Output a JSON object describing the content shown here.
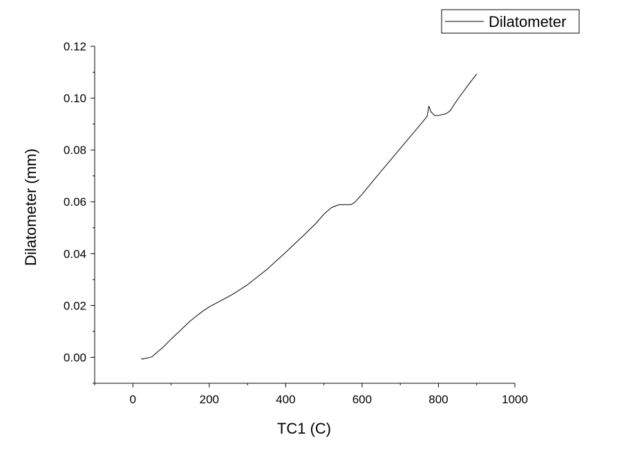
{
  "chart_data": {
    "type": "line",
    "title": "",
    "xlabel": "TC1 (C)",
    "ylabel": "Dilatometer (mm)",
    "xlim": [
      -100,
      1000
    ],
    "ylim": [
      -0.01,
      0.12
    ],
    "xticks": [
      0,
      200,
      400,
      600,
      800,
      1000
    ],
    "xtick_labels": [
      "0",
      "200",
      "400",
      "600",
      "800",
      "1000"
    ],
    "yticks": [
      0.0,
      0.02,
      0.04,
      0.06,
      0.08,
      0.1,
      0.12
    ],
    "ytick_labels": [
      "0.00",
      "0.02",
      "0.04",
      "0.06",
      "0.08",
      "0.10",
      "0.12"
    ],
    "grid": false,
    "legend_position": "top-right",
    "series": [
      {
        "name": "Dilatometer",
        "color": "#000000",
        "x": [
          22,
          25,
          30,
          40,
          50,
          60,
          80,
          100,
          120,
          150,
          180,
          200,
          230,
          260,
          300,
          350,
          400,
          450,
          480,
          500,
          520,
          540,
          560,
          570,
          580,
          600,
          650,
          700,
          750,
          770,
          775,
          780,
          790,
          800,
          820,
          830,
          850,
          880,
          900
        ],
        "y": [
          -0.0003,
          -0.0007,
          -0.0005,
          -0.0002,
          0.0002,
          0.0015,
          0.004,
          0.007,
          0.0098,
          0.014,
          0.0175,
          0.0195,
          0.0218,
          0.0242,
          0.028,
          0.0338,
          0.0405,
          0.0475,
          0.0518,
          0.0552,
          0.0578,
          0.0589,
          0.0589,
          0.0589,
          0.0597,
          0.0629,
          0.0718,
          0.0806,
          0.0893,
          0.0929,
          0.0969,
          0.0948,
          0.0933,
          0.0933,
          0.094,
          0.095,
          0.0995,
          0.1055,
          0.1093
        ]
      }
    ]
  }
}
